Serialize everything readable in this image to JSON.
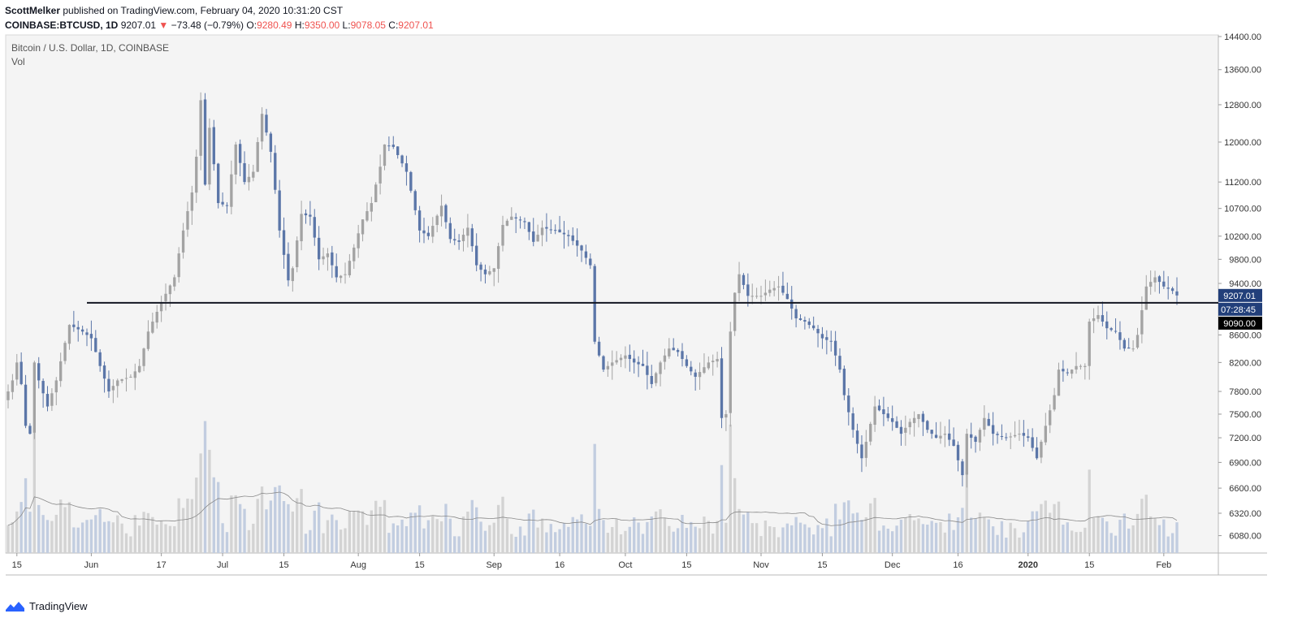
{
  "header": {
    "author": "ScottMelker",
    "published_text": "published on TradingView.com, February 04, 2020 10:31:20 CST",
    "symbol": "COINBASE:BTCUSD, 1D",
    "last": "9207.01",
    "change_arrow": "▼",
    "change": "−73.48 (−0.79%)",
    "open_label": "O:",
    "open": "9280.49",
    "high_label": "H:",
    "high": "9350.00",
    "low_label": "L:",
    "low": "9078.05",
    "close_label": "C:",
    "close": "9207.01"
  },
  "footer": {
    "brand": "TradingView"
  },
  "colors": {
    "up": "#a3a3a3",
    "down": "#5b76a8",
    "background": "#f4f4f4",
    "volume_up": "#d3d3d3",
    "volume_down": "#c2cde0",
    "hline": "#131722",
    "price_tag": "#223f7a",
    "level_tag": "#000000"
  },
  "chart_data": {
    "type": "candlestick",
    "title": "Bitcoin / U.S. Dollar, 1D, COINBASE",
    "indicator": "Vol",
    "y_scale": "log",
    "ylim": [
      5900,
      14400
    ],
    "yticks": [
      6080,
      6320,
      6600,
      6900,
      7200,
      7500,
      7800,
      8200,
      8600,
      9000,
      9400,
      9800,
      10200,
      10700,
      11200,
      12000,
      12800,
      13600,
      14400
    ],
    "ytick_labels": [
      "6080.00",
      "6320.00",
      "6600.00",
      "6900.00",
      "7200.00",
      "7500.00",
      "7800.00",
      "8200.00",
      "8600.00",
      "9000.00",
      "9400.00",
      "9800.00",
      "10200.00",
      "10700.00",
      "11200.00",
      "12000.00",
      "12800.00",
      "13600.00",
      "14400.00"
    ],
    "x_start": "2019-05-13",
    "x_end": "2020-02-04",
    "xticks": [
      {
        "date": "2019-05-15",
        "label": "15"
      },
      {
        "date": "2019-06-01",
        "label": "Jun"
      },
      {
        "date": "2019-06-17",
        "label": "17"
      },
      {
        "date": "2019-07-01",
        "label": "Jul"
      },
      {
        "date": "2019-07-15",
        "label": "15"
      },
      {
        "date": "2019-08-01",
        "label": "Aug"
      },
      {
        "date": "2019-08-15",
        "label": "15"
      },
      {
        "date": "2019-09-01",
        "label": "Sep"
      },
      {
        "date": "2019-09-16",
        "label": "16"
      },
      {
        "date": "2019-10-01",
        "label": "Oct"
      },
      {
        "date": "2019-10-15",
        "label": "15"
      },
      {
        "date": "2019-11-01",
        "label": "Nov"
      },
      {
        "date": "2019-11-15",
        "label": "15"
      },
      {
        "date": "2019-12-01",
        "label": "Dec"
      },
      {
        "date": "2019-12-16",
        "label": "16"
      },
      {
        "date": "2020-01-01",
        "label": "2020"
      },
      {
        "date": "2020-01-15",
        "label": "15"
      },
      {
        "date": "2020-02-01",
        "label": "Feb"
      }
    ],
    "close_anchors": [
      [
        "2019-05-13",
        7800
      ],
      [
        "2019-05-14",
        7950
      ],
      [
        "2019-05-15",
        8200
      ],
      [
        "2019-05-16",
        7900
      ],
      [
        "2019-05-17",
        7350
      ],
      [
        "2019-05-18",
        7250
      ],
      [
        "2019-05-19",
        8200
      ],
      [
        "2019-05-20",
        7950
      ],
      [
        "2019-05-22",
        7600
      ],
      [
        "2019-05-24",
        7950
      ],
      [
        "2019-05-27",
        8750
      ],
      [
        "2019-05-30",
        8650
      ],
      [
        "2019-06-01",
        8550
      ],
      [
        "2019-06-03",
        8150
      ],
      [
        "2019-06-05",
        7800
      ],
      [
        "2019-06-07",
        7950
      ],
      [
        "2019-06-10",
        8000
      ],
      [
        "2019-06-12",
        8150
      ],
      [
        "2019-06-14",
        8650
      ],
      [
        "2019-06-17",
        9100
      ],
      [
        "2019-06-20",
        9500
      ],
      [
        "2019-06-22",
        10300
      ],
      [
        "2019-06-24",
        11000
      ],
      [
        "2019-06-25",
        11700
      ],
      [
        "2019-06-26",
        12900
      ],
      [
        "2019-06-27",
        11150
      ],
      [
        "2019-06-28",
        12300
      ],
      [
        "2019-06-30",
        10800
      ],
      [
        "2019-07-02",
        10750
      ],
      [
        "2019-07-04",
        11950
      ],
      [
        "2019-07-06",
        11200
      ],
      [
        "2019-07-08",
        11400
      ],
      [
        "2019-07-10",
        12600
      ],
      [
        "2019-07-12",
        11800
      ],
      [
        "2019-07-14",
        10300
      ],
      [
        "2019-07-16",
        9450
      ],
      [
        "2019-07-17",
        9650
      ],
      [
        "2019-07-19",
        10600
      ],
      [
        "2019-07-21",
        10550
      ],
      [
        "2019-07-23",
        9800
      ],
      [
        "2019-07-25",
        9900
      ],
      [
        "2019-07-27",
        9500
      ],
      [
        "2019-07-29",
        9550
      ],
      [
        "2019-07-31",
        10000
      ],
      [
        "2019-08-02",
        10500
      ],
      [
        "2019-08-04",
        10800
      ],
      [
        "2019-08-06",
        11500
      ],
      [
        "2019-08-07",
        11950
      ],
      [
        "2019-08-09",
        11900
      ],
      [
        "2019-08-12",
        11400
      ],
      [
        "2019-08-15",
        10300
      ],
      [
        "2019-08-17",
        10200
      ],
      [
        "2019-08-20",
        10750
      ],
      [
        "2019-08-22",
        10150
      ],
      [
        "2019-08-24",
        10100
      ],
      [
        "2019-08-26",
        10350
      ],
      [
        "2019-08-28",
        9700
      ],
      [
        "2019-08-30",
        9550
      ],
      [
        "2019-09-01",
        9650
      ],
      [
        "2019-09-03",
        10400
      ],
      [
        "2019-09-05",
        10550
      ],
      [
        "2019-09-08",
        10450
      ],
      [
        "2019-09-10",
        10100
      ],
      [
        "2019-09-12",
        10350
      ],
      [
        "2019-09-15",
        10300
      ],
      [
        "2019-09-18",
        10200
      ],
      [
        "2019-09-21",
        9950
      ],
      [
        "2019-09-23",
        9700
      ],
      [
        "2019-09-24",
        8500
      ],
      [
        "2019-09-26",
        8100
      ],
      [
        "2019-09-28",
        8200
      ],
      [
        "2019-10-01",
        8300
      ],
      [
        "2019-10-03",
        8200
      ],
      [
        "2019-10-05",
        8150
      ],
      [
        "2019-10-07",
        7900
      ],
      [
        "2019-10-09",
        8200
      ],
      [
        "2019-10-11",
        8400
      ],
      [
        "2019-10-13",
        8350
      ],
      [
        "2019-10-15",
        8150
      ],
      [
        "2019-10-17",
        8000
      ],
      [
        "2019-10-20",
        8200
      ],
      [
        "2019-10-22",
        8250
      ],
      [
        "2019-10-23",
        7450
      ],
      [
        "2019-10-24",
        7500
      ],
      [
        "2019-10-25",
        8650
      ],
      [
        "2019-10-26",
        9250
      ],
      [
        "2019-10-27",
        9550
      ],
      [
        "2019-10-29",
        9200
      ],
      [
        "2019-11-01",
        9200
      ],
      [
        "2019-11-03",
        9300
      ],
      [
        "2019-11-05",
        9350
      ],
      [
        "2019-11-07",
        9150
      ],
      [
        "2019-11-09",
        8850
      ],
      [
        "2019-11-11",
        8800
      ],
      [
        "2019-11-13",
        8700
      ],
      [
        "2019-11-15",
        8550
      ],
      [
        "2019-11-17",
        8500
      ],
      [
        "2019-11-19",
        8100
      ],
      [
        "2019-11-20",
        7750
      ],
      [
        "2019-11-22",
        7300
      ],
      [
        "2019-11-24",
        6950
      ],
      [
        "2019-11-25",
        7150
      ],
      [
        "2019-11-27",
        7600
      ],
      [
        "2019-11-29",
        7500
      ],
      [
        "2019-12-01",
        7400
      ],
      [
        "2019-12-03",
        7250
      ],
      [
        "2019-12-05",
        7400
      ],
      [
        "2019-12-07",
        7500
      ],
      [
        "2019-12-09",
        7300
      ],
      [
        "2019-12-11",
        7200
      ],
      [
        "2019-12-13",
        7250
      ],
      [
        "2019-12-15",
        7100
      ],
      [
        "2019-12-17",
        6750
      ],
      [
        "2019-12-18",
        7250
      ],
      [
        "2019-12-20",
        7150
      ],
      [
        "2019-12-22",
        7450
      ],
      [
        "2019-12-24",
        7250
      ],
      [
        "2019-12-27",
        7200
      ],
      [
        "2019-12-30",
        7250
      ],
      [
        "2020-01-01",
        7200
      ],
      [
        "2020-01-03",
        6950
      ],
      [
        "2020-01-05",
        7350
      ],
      [
        "2020-01-07",
        7750
      ],
      [
        "2020-01-08",
        8100
      ],
      [
        "2020-01-10",
        8050
      ],
      [
        "2020-01-12",
        8150
      ],
      [
        "2020-01-14",
        8150
      ],
      [
        "2020-01-15",
        8800
      ],
      [
        "2020-01-17",
        8900
      ],
      [
        "2020-01-19",
        8700
      ],
      [
        "2020-01-21",
        8650
      ],
      [
        "2020-01-23",
        8400
      ],
      [
        "2020-01-25",
        8400
      ],
      [
        "2020-01-26",
        8600
      ],
      [
        "2020-01-28",
        9350
      ],
      [
        "2020-01-30",
        9500
      ],
      [
        "2020-02-01",
        9350
      ],
      [
        "2020-02-03",
        9280
      ],
      [
        "2020-02-04",
        9207.01
      ]
    ],
    "horizontal_line": {
      "value": 9090,
      "start": "2019-05-31",
      "label": "9090.00"
    },
    "last_price": {
      "value": 9207.01,
      "label": "9207.01",
      "countdown": "07:28:45"
    }
  }
}
